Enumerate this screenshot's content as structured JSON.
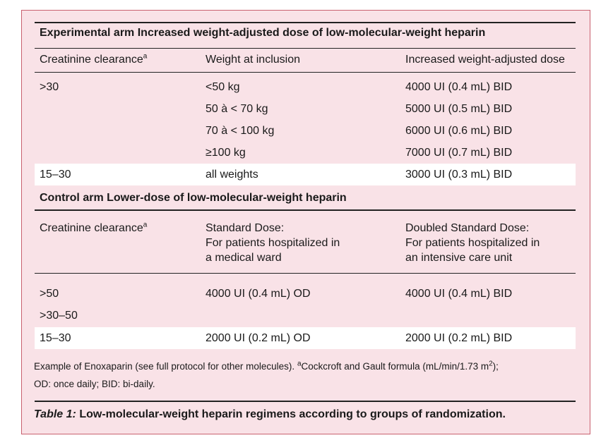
{
  "experimental": {
    "title": "Experimental arm Increased weight-adjusted dose of low-molecular-weight heparin",
    "headers": {
      "col1": "Creatinine clearance",
      "col2": "Weight at inclusion",
      "col3": "Increased weight-adjusted dose"
    },
    "footnote_marker": "a",
    "rows": [
      {
        "clearance": ">30",
        "weight": "<50 kg",
        "dose": "4000 UI (0.4 mL) BID"
      },
      {
        "clearance": "",
        "weight": "50 à < 70 kg",
        "dose": "5000 UI (0.5 mL) BID"
      },
      {
        "clearance": "",
        "weight": "70 à < 100 kg",
        "dose": "6000 UI (0.6 mL) BID"
      },
      {
        "clearance": "",
        "weight": "≥100 kg",
        "dose": "7000 UI (0.7 mL) BID"
      },
      {
        "clearance": "15–30",
        "weight": "all weights",
        "dose": "3000 UI (0.3 mL) BID"
      }
    ]
  },
  "control": {
    "title": "Control arm Lower-dose of low-molecular-weight heparin",
    "headers": {
      "col1": "Creatinine clearance",
      "col2_lines": [
        "Standard Dose:",
        "For patients hospitalized in",
        "a medical ward"
      ],
      "col3_lines": [
        "Doubled Standard Dose:",
        "For patients hospitalized in",
        "an intensive care unit"
      ]
    },
    "footnote_marker": "a",
    "rows": [
      {
        "clearance": ">50",
        "standard": "4000 UI (0.4 mL) OD",
        "doubled": "4000 UI (0.4 mL) BID"
      },
      {
        "clearance": ">30–50",
        "standard": "",
        "doubled": ""
      },
      {
        "clearance": "15–30",
        "standard": "2000 UI (0.2 mL) OD",
        "doubled": "2000 UI (0.2 mL) BID"
      }
    ]
  },
  "footnote": {
    "line1_prefix": "Example of Enoxaparin (see full protocol for other molecules). ",
    "marker": "a",
    "line1_text": "Cockcroft and Gault formula (mL/min/1.73 m",
    "exponent": "2",
    "line1_suffix": ");",
    "line2": "OD: once daily; BID: bi-daily."
  },
  "caption": {
    "label": "Table 1:",
    "text": " Low-molecular-weight heparin regimens according to groups of randomization."
  }
}
